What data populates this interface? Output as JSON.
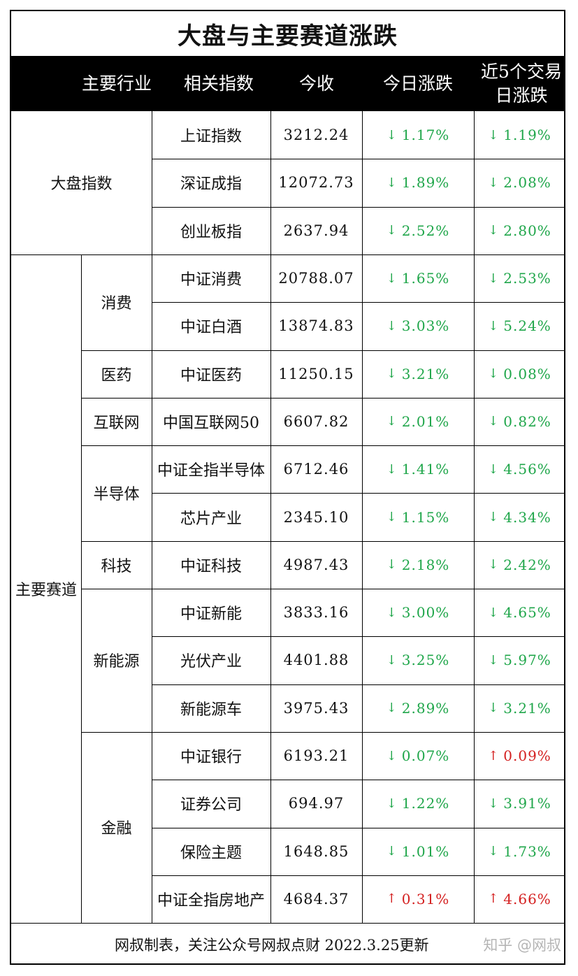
{
  "title": "大盘与主要赛道涨跌",
  "header": {
    "industry": "主要行业",
    "index": "相关指数",
    "close": "今收",
    "today_change": "今日涨跌",
    "five_day_change": "近5个交易日涨跌"
  },
  "colors": {
    "down": "#1fa64a",
    "up": "#d42020",
    "header_bg": "#000000"
  },
  "groups": [
    {
      "name": "大盘指数"
    },
    {
      "name": "主要赛道"
    }
  ],
  "subgroups": [
    "消费",
    "医药",
    "互联网",
    "半导体",
    "科技",
    "新能源",
    "金融"
  ],
  "rows": [
    {
      "index": "上证指数",
      "close": "3212.24",
      "today": "1.17%",
      "today_dir": "down",
      "five": "1.19%",
      "five_dir": "down"
    },
    {
      "index": "深证成指",
      "close": "12072.73",
      "today": "1.89%",
      "today_dir": "down",
      "five": "2.08%",
      "five_dir": "down"
    },
    {
      "index": "创业板指",
      "close": "2637.94",
      "today": "2.52%",
      "today_dir": "down",
      "five": "2.80%",
      "five_dir": "down"
    },
    {
      "index": "中证消费",
      "close": "20788.07",
      "today": "1.65%",
      "today_dir": "down",
      "five": "2.53%",
      "five_dir": "down"
    },
    {
      "index": "中证白酒",
      "close": "13874.83",
      "today": "3.03%",
      "today_dir": "down",
      "five": "5.24%",
      "five_dir": "down"
    },
    {
      "index": "中证医药",
      "close": "11250.15",
      "today": "3.21%",
      "today_dir": "down",
      "five": "0.08%",
      "five_dir": "down"
    },
    {
      "index": "中国互联网50",
      "close": "6607.82",
      "today": "2.01%",
      "today_dir": "down",
      "five": "0.82%",
      "five_dir": "down"
    },
    {
      "index": "中证全指半导体",
      "close": "6712.46",
      "today": "1.41%",
      "today_dir": "down",
      "five": "4.56%",
      "five_dir": "down"
    },
    {
      "index": "芯片产业",
      "close": "2345.10",
      "today": "1.15%",
      "today_dir": "down",
      "five": "4.34%",
      "five_dir": "down"
    },
    {
      "index": "中证科技",
      "close": "4987.43",
      "today": "2.18%",
      "today_dir": "down",
      "five": "2.42%",
      "five_dir": "down"
    },
    {
      "index": "中证新能",
      "close": "3833.16",
      "today": "3.00%",
      "today_dir": "down",
      "five": "4.65%",
      "five_dir": "down"
    },
    {
      "index": "光伏产业",
      "close": "4401.88",
      "today": "3.25%",
      "today_dir": "down",
      "five": "5.97%",
      "five_dir": "down"
    },
    {
      "index": "新能源车",
      "close": "3975.43",
      "today": "2.89%",
      "today_dir": "down",
      "five": "3.21%",
      "five_dir": "down"
    },
    {
      "index": "中证银行",
      "close": "6193.21",
      "today": "0.07%",
      "today_dir": "down",
      "five": "0.09%",
      "five_dir": "up"
    },
    {
      "index": "证券公司",
      "close": "694.97",
      "today": "1.22%",
      "today_dir": "down",
      "five": "3.91%",
      "five_dir": "down"
    },
    {
      "index": "保险主题",
      "close": "1648.85",
      "today": "1.01%",
      "today_dir": "down",
      "five": "1.73%",
      "five_dir": "down"
    },
    {
      "index": "中证全指房地产",
      "close": "4684.37",
      "today": "0.31%",
      "today_dir": "up",
      "five": "4.66%",
      "five_dir": "up"
    }
  ],
  "footer": {
    "text": "网叔制表，关注公众号网叔点财 2022.3.25更新",
    "watermark": "知乎 @网叔"
  }
}
